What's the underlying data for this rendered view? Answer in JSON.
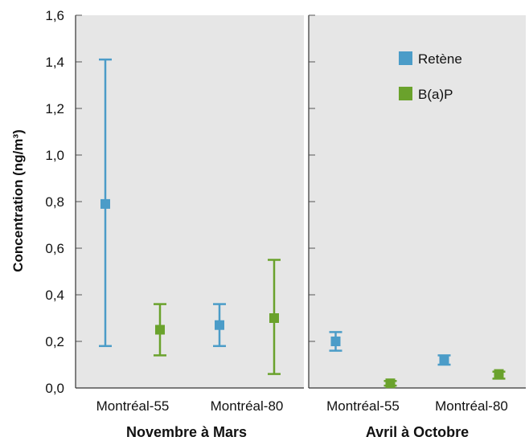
{
  "chart_data": {
    "type": "scatter",
    "ylabel": "Concentration (ng/m³)",
    "ylim": [
      0,
      1.6
    ],
    "yticks": [
      "0,0",
      "0,2",
      "0,4",
      "0,6",
      "0,8",
      "1,0",
      "1,2",
      "1,4",
      "1,6"
    ],
    "ytick_values": [
      0,
      0.2,
      0.4,
      0.6,
      0.8,
      1.0,
      1.2,
      1.4,
      1.6
    ],
    "legend": {
      "placement": "top-right of second panel",
      "entries": [
        "Retène",
        "B(a)P"
      ]
    },
    "series_colors": {
      "Retène": "#4b9cc8",
      "B(a)P": "#6aa22c"
    },
    "panels": [
      {
        "title": "Novembre à Mars",
        "categories": [
          "Montréal-55",
          "Montréal-80"
        ],
        "series": [
          {
            "key": "Retène",
            "values": [
              0.79,
              0.27
            ],
            "low": [
              0.18,
              0.18
            ],
            "high": [
              1.41,
              0.36
            ]
          },
          {
            "key": "B(a)P",
            "values": [
              0.25,
              0.3
            ],
            "low": [
              0.14,
              0.06
            ],
            "high": [
              0.36,
              0.55
            ]
          }
        ]
      },
      {
        "title": "Avril à Octobre",
        "categories": [
          "Montréal-55",
          "Montréal-80"
        ],
        "series": [
          {
            "key": "Retène",
            "values": [
              0.2,
              0.12
            ],
            "low": [
              0.16,
              0.1
            ],
            "high": [
              0.24,
              0.14
            ]
          },
          {
            "key": "B(a)P",
            "values": [
              0.02,
              0.06
            ],
            "low": [
              0.01,
              0.04
            ],
            "high": [
              0.03,
              0.07
            ]
          }
        ]
      }
    ]
  }
}
